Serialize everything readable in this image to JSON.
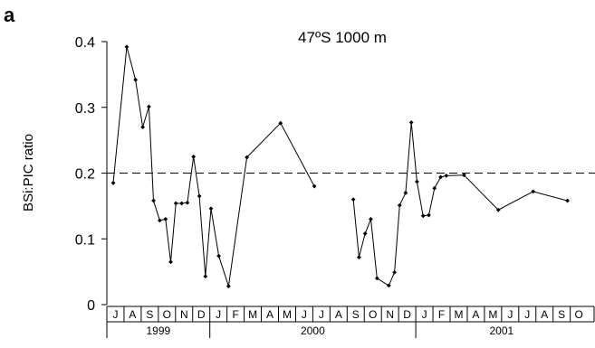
{
  "panel_label": "a",
  "chart_data": {
    "type": "line",
    "title": "47ºS 1000 m",
    "xlabel": "",
    "ylabel": "BSi:PIC ratio",
    "ylim": [
      0,
      0.4
    ],
    "yticks": [
      "0",
      "0.1",
      "0.2",
      "0.3",
      "0.4"
    ],
    "reference_line": {
      "y": 0.2,
      "style": "dashed"
    },
    "months": [
      "J",
      "A",
      "S",
      "O",
      "N",
      "D",
      "J",
      "F",
      "M",
      "A",
      "M",
      "J",
      "J",
      "A",
      "S",
      "O",
      "N",
      "D",
      "J",
      "F",
      "M",
      "A",
      "M",
      "J",
      "J",
      "A",
      "S",
      "O"
    ],
    "years": [
      {
        "label": "1999",
        "start": 0,
        "end": 6
      },
      {
        "label": "2000",
        "start": 6,
        "end": 18
      },
      {
        "label": "2001",
        "start": 18,
        "end": 28
      }
    ],
    "series": [
      {
        "segments": [
          [
            {
              "x": 0.37,
              "y": 0.185
            },
            {
              "x": 1.16,
              "y": 0.392
            },
            {
              "x": 1.67,
              "y": 0.342
            },
            {
              "x": 2.09,
              "y": 0.27
            },
            {
              "x": 2.45,
              "y": 0.301
            },
            {
              "x": 2.72,
              "y": 0.158
            },
            {
              "x": 3.08,
              "y": 0.128
            },
            {
              "x": 3.42,
              "y": 0.13
            },
            {
              "x": 3.72,
              "y": 0.065
            },
            {
              "x": 4.02,
              "y": 0.154
            },
            {
              "x": 4.36,
              "y": 0.154
            },
            {
              "x": 4.69,
              "y": 0.155
            },
            {
              "x": 5.05,
              "y": 0.225
            },
            {
              "x": 5.39,
              "y": 0.165
            },
            {
              "x": 5.74,
              "y": 0.043
            },
            {
              "x": 6.07,
              "y": 0.146
            },
            {
              "x": 6.52,
              "y": 0.074
            },
            {
              "x": 7.09,
              "y": 0.028
            },
            {
              "x": 8.16,
              "y": 0.224
            },
            {
              "x": 10.12,
              "y": 0.276
            },
            {
              "x": 12.09,
              "y": 0.18
            }
          ],
          [
            {
              "x": 14.36,
              "y": 0.16
            },
            {
              "x": 14.69,
              "y": 0.072
            },
            {
              "x": 15.05,
              "y": 0.108
            },
            {
              "x": 15.38,
              "y": 0.13
            },
            {
              "x": 15.74,
              "y": 0.04
            },
            {
              "x": 16.43,
              "y": 0.029
            },
            {
              "x": 16.76,
              "y": 0.049
            },
            {
              "x": 17.06,
              "y": 0.151
            },
            {
              "x": 17.41,
              "y": 0.17
            },
            {
              "x": 17.74,
              "y": 0.277
            },
            {
              "x": 18.07,
              "y": 0.187
            },
            {
              "x": 18.43,
              "y": 0.135
            },
            {
              "x": 18.76,
              "y": 0.136
            },
            {
              "x": 19.09,
              "y": 0.177
            },
            {
              "x": 19.45,
              "y": 0.194
            },
            {
              "x": 19.78,
              "y": 0.196
            },
            {
              "x": 20.81,
              "y": 0.197
            },
            {
              "x": 22.81,
              "y": 0.144
            },
            {
              "x": 24.84,
              "y": 0.172
            },
            {
              "x": 26.84,
              "y": 0.158
            }
          ]
        ]
      }
    ]
  }
}
